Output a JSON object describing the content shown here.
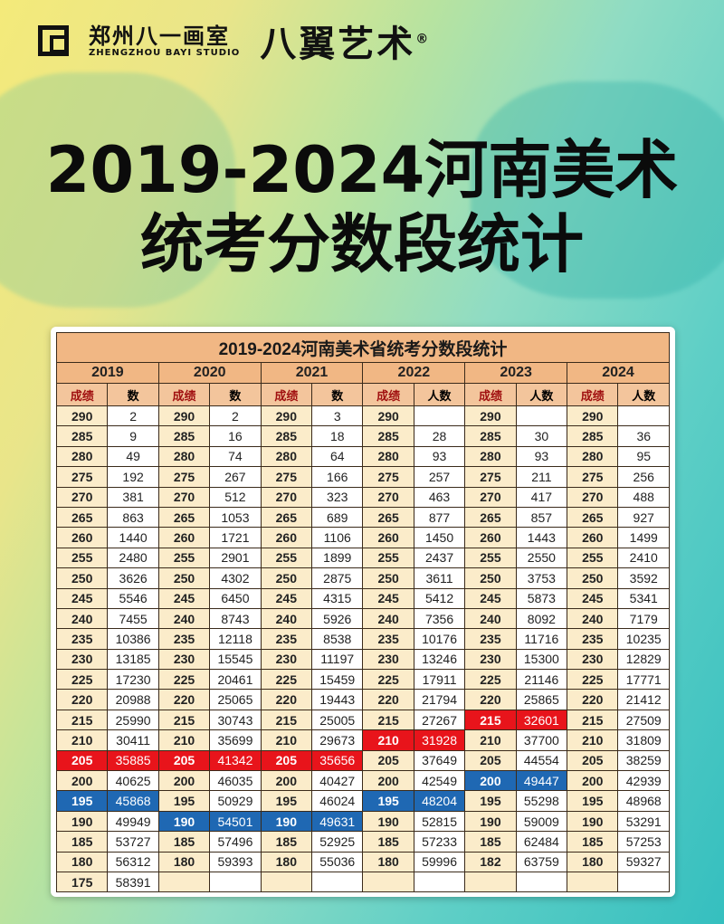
{
  "header": {
    "studio_cn": "郑州八一画室",
    "studio_en": "ZHENGZHOU BAYI STUDIO",
    "brand": "八翼艺术",
    "registered": "®"
  },
  "title": {
    "line1": "2019-2024河南美术",
    "line2": "统考分数段统计"
  },
  "table": {
    "caption": "2019-2024河南美术省统考分数段统计",
    "highlight_colors": {
      "red": "#e8141b",
      "blue": "#1f68b3"
    },
    "years": [
      {
        "year": "2019",
        "score_label": "成绩",
        "count_label": "数",
        "rows": [
          [
            "290",
            "2"
          ],
          [
            "285",
            "9"
          ],
          [
            "280",
            "49"
          ],
          [
            "275",
            "192"
          ],
          [
            "270",
            "381"
          ],
          [
            "265",
            "863"
          ],
          [
            "260",
            "1440"
          ],
          [
            "255",
            "2480"
          ],
          [
            "250",
            "3626"
          ],
          [
            "245",
            "5546"
          ],
          [
            "240",
            "7455"
          ],
          [
            "235",
            "10386"
          ],
          [
            "230",
            "13185"
          ],
          [
            "225",
            "17230"
          ],
          [
            "220",
            "20988"
          ],
          [
            "215",
            "25990"
          ],
          [
            "210",
            "30411"
          ],
          [
            "205",
            "35885",
            "red"
          ],
          [
            "200",
            "40625"
          ],
          [
            "195",
            "45868",
            "blue"
          ],
          [
            "190",
            "49949"
          ],
          [
            "185",
            "53727"
          ],
          [
            "180",
            "56312"
          ],
          [
            "175",
            "58391"
          ]
        ]
      },
      {
        "year": "2020",
        "score_label": "成绩",
        "count_label": "数",
        "rows": [
          [
            "290",
            "2"
          ],
          [
            "285",
            "16"
          ],
          [
            "280",
            "74"
          ],
          [
            "275",
            "267"
          ],
          [
            "270",
            "512"
          ],
          [
            "265",
            "1053"
          ],
          [
            "260",
            "1721"
          ],
          [
            "255",
            "2901"
          ],
          [
            "250",
            "4302"
          ],
          [
            "245",
            "6450"
          ],
          [
            "240",
            "8743"
          ],
          [
            "235",
            "12118"
          ],
          [
            "230",
            "15545"
          ],
          [
            "225",
            "20461"
          ],
          [
            "220",
            "25065"
          ],
          [
            "215",
            "30743"
          ],
          [
            "210",
            "35699"
          ],
          [
            "205",
            "41342",
            "red"
          ],
          [
            "200",
            "46035"
          ],
          [
            "195",
            "50929"
          ],
          [
            "190",
            "54501",
            "blue"
          ],
          [
            "185",
            "57496"
          ],
          [
            "180",
            "59393"
          ],
          [
            "",
            ""
          ]
        ]
      },
      {
        "year": "2021",
        "score_label": "成绩",
        "count_label": "数",
        "rows": [
          [
            "290",
            "3"
          ],
          [
            "285",
            "18"
          ],
          [
            "280",
            "64"
          ],
          [
            "275",
            "166"
          ],
          [
            "270",
            "323"
          ],
          [
            "265",
            "689"
          ],
          [
            "260",
            "1106"
          ],
          [
            "255",
            "1899"
          ],
          [
            "250",
            "2875"
          ],
          [
            "245",
            "4315"
          ],
          [
            "240",
            "5926"
          ],
          [
            "235",
            "8538"
          ],
          [
            "230",
            "11197"
          ],
          [
            "225",
            "15459"
          ],
          [
            "220",
            "19443"
          ],
          [
            "215",
            "25005"
          ],
          [
            "210",
            "29673"
          ],
          [
            "205",
            "35656",
            "red"
          ],
          [
            "200",
            "40427"
          ],
          [
            "195",
            "46024"
          ],
          [
            "190",
            "49631",
            "blue"
          ],
          [
            "185",
            "52925"
          ],
          [
            "180",
            "55036"
          ],
          [
            "",
            ""
          ]
        ]
      },
      {
        "year": "2022",
        "score_label": "成绩",
        "count_label": "人数",
        "rows": [
          [
            "290",
            ""
          ],
          [
            "285",
            "28"
          ],
          [
            "280",
            "93"
          ],
          [
            "275",
            "257"
          ],
          [
            "270",
            "463"
          ],
          [
            "265",
            "877"
          ],
          [
            "260",
            "1450"
          ],
          [
            "255",
            "2437"
          ],
          [
            "250",
            "3611"
          ],
          [
            "245",
            "5412"
          ],
          [
            "240",
            "7356"
          ],
          [
            "235",
            "10176"
          ],
          [
            "230",
            "13246"
          ],
          [
            "225",
            "17911"
          ],
          [
            "220",
            "21794"
          ],
          [
            "215",
            "27267"
          ],
          [
            "210",
            "31928",
            "red"
          ],
          [
            "205",
            "37649"
          ],
          [
            "200",
            "42549"
          ],
          [
            "195",
            "48204",
            "blue"
          ],
          [
            "190",
            "52815"
          ],
          [
            "185",
            "57233"
          ],
          [
            "180",
            "59996"
          ],
          [
            "",
            ""
          ]
        ]
      },
      {
        "year": "2023",
        "score_label": "成绩",
        "count_label": "人数",
        "rows": [
          [
            "290",
            ""
          ],
          [
            "285",
            "30"
          ],
          [
            "280",
            "93"
          ],
          [
            "275",
            "211"
          ],
          [
            "270",
            "417"
          ],
          [
            "265",
            "857"
          ],
          [
            "260",
            "1443"
          ],
          [
            "255",
            "2550"
          ],
          [
            "250",
            "3753"
          ],
          [
            "245",
            "5873"
          ],
          [
            "240",
            "8092"
          ],
          [
            "235",
            "11716"
          ],
          [
            "230",
            "15300"
          ],
          [
            "225",
            "21146"
          ],
          [
            "220",
            "25865"
          ],
          [
            "215",
            "32601",
            "red"
          ],
          [
            "210",
            "37700"
          ],
          [
            "205",
            "44554"
          ],
          [
            "200",
            "49447",
            "blue"
          ],
          [
            "195",
            "55298"
          ],
          [
            "190",
            "59009"
          ],
          [
            "185",
            "62484"
          ],
          [
            "182",
            "63759"
          ],
          [
            "",
            ""
          ]
        ]
      },
      {
        "year": "2024",
        "score_label": "成绩",
        "count_label": "人数",
        "rows": [
          [
            "290",
            ""
          ],
          [
            "285",
            "36"
          ],
          [
            "280",
            "95"
          ],
          [
            "275",
            "256"
          ],
          [
            "270",
            "488"
          ],
          [
            "265",
            "927"
          ],
          [
            "260",
            "1499"
          ],
          [
            "255",
            "2410"
          ],
          [
            "250",
            "3592"
          ],
          [
            "245",
            "5341"
          ],
          [
            "240",
            "7179"
          ],
          [
            "235",
            "10235"
          ],
          [
            "230",
            "12829"
          ],
          [
            "225",
            "17771"
          ],
          [
            "220",
            "21412"
          ],
          [
            "215",
            "27509"
          ],
          [
            "210",
            "31809"
          ],
          [
            "205",
            "38259"
          ],
          [
            "200",
            "42939"
          ],
          [
            "195",
            "48968"
          ],
          [
            "190",
            "53291"
          ],
          [
            "185",
            "57253"
          ],
          [
            "180",
            "59327"
          ],
          [
            "",
            ""
          ]
        ]
      }
    ]
  }
}
